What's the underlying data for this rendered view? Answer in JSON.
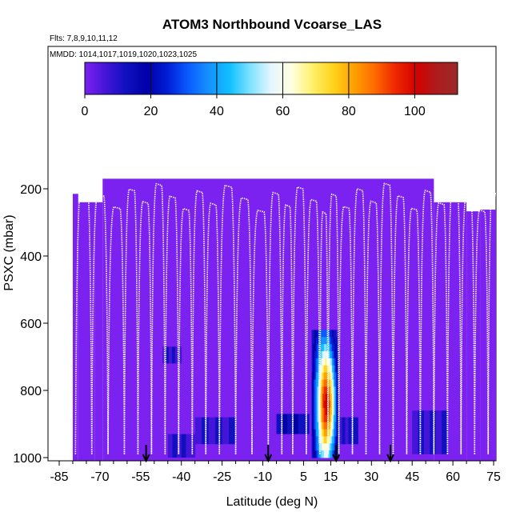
{
  "chart_data": {
    "type": "heatmap",
    "title": "ATOM3 Northbound Vcoarse_LAS",
    "flights_label": "Flts: 7,8,9,10,11,12",
    "dates_label": "MMDD: 1014,1017,1019,1020,1023,1025",
    "xlabel": "Latitude (deg N)",
    "ylabel": "PSXC (mbar)",
    "xlim": [
      -85,
      80
    ],
    "ylim": [
      1010,
      50
    ],
    "x_ticks": [
      -85,
      -70,
      -55,
      -40,
      -25,
      -10,
      5,
      15,
      30,
      45,
      60,
      75
    ],
    "y_ticks": [
      200,
      400,
      600,
      800,
      1000
    ],
    "colorbar": {
      "min": 0,
      "max": 113,
      "ticks": [
        0,
        20,
        40,
        60,
        80,
        100
      ],
      "colors": [
        "#7b22f0",
        "#4414d8",
        "#1010c0",
        "#0000a8",
        "#001ed6",
        "#0a5cff",
        "#1592ff",
        "#10c0ff",
        "#80e2ff",
        "#e6f6ff",
        "#ffffe0",
        "#fff06a",
        "#ffd21c",
        "#ffa000",
        "#ff6a00",
        "#ee2800",
        "#d40000",
        "#ae1c1c",
        "#9b2a2a"
      ]
    },
    "background_value": 3,
    "plume": {
      "lat_range": [
        8,
        18
      ],
      "pressure_range": [
        620,
        1000
      ],
      "peak_value": 90
    },
    "dark_patches": [
      {
        "lat": [
          -47,
          -40
        ],
        "p": [
          670,
          720
        ],
        "value": 10
      },
      {
        "lat": [
          -45,
          -35
        ],
        "p": [
          930,
          1000
        ],
        "value": 10
      },
      {
        "lat": [
          -35,
          -20
        ],
        "p": [
          880,
          960
        ],
        "value": 12
      },
      {
        "lat": [
          -5,
          7
        ],
        "p": [
          870,
          930
        ],
        "value": 18
      },
      {
        "lat": [
          18,
          25
        ],
        "p": [
          880,
          960
        ],
        "value": 15
      },
      {
        "lat": [
          45,
          58
        ],
        "p": [
          860,
          990
        ],
        "value": 12
      }
    ],
    "profiles_lat": [
      -79,
      -73,
      -67,
      -61,
      -56,
      -51,
      -46,
      -41,
      -36,
      -31,
      -26,
      -20,
      -14,
      -8,
      -3,
      1,
      6,
      11,
      14,
      18,
      23,
      28,
      33,
      38,
      43,
      48,
      53,
      58,
      63,
      68,
      73,
      77
    ],
    "arrows_lat": [
      -53,
      -8,
      17,
      37
    ]
  }
}
